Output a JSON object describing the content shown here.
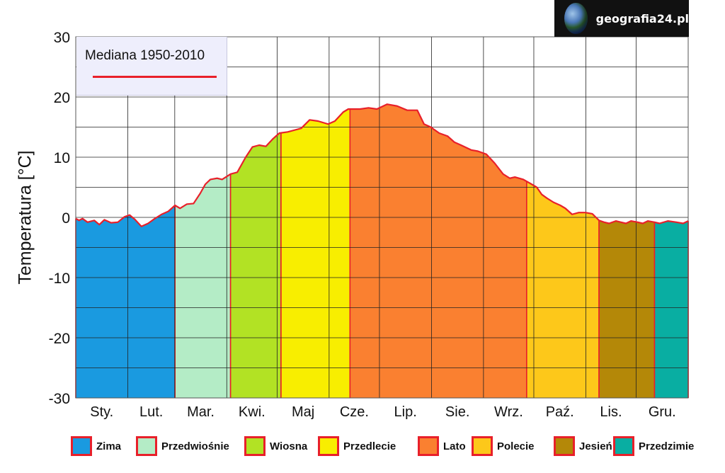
{
  "brand": {
    "text": "geografia24.pl",
    "icon": "globe-icon"
  },
  "chart_data": {
    "type": "area",
    "ylabel": "Temperatura [°C]",
    "ylim": [
      -30,
      30
    ],
    "yticks": [
      30,
      20,
      10,
      0,
      -10,
      -20,
      -30
    ],
    "months": [
      "Sty.",
      "Lut.",
      "Mar.",
      "Kwi.",
      "Maj",
      "Cze.",
      "Lip.",
      "Sie.",
      "Wrz.",
      "Paź.",
      "Lis.",
      "Gru."
    ],
    "line_legend": "Mediana 1950-2010",
    "line_color": "#e8202a",
    "grid": true,
    "median_curve": {
      "day": [
        1,
        3,
        5,
        8,
        12,
        15,
        18,
        22,
        26,
        30,
        33,
        36,
        40,
        44,
        48,
        52,
        56,
        60,
        63,
        67,
        71,
        75,
        78,
        81,
        85,
        88,
        93,
        97,
        102,
        106,
        110,
        114,
        118,
        122,
        127,
        131,
        135,
        140,
        145,
        151,
        155,
        160,
        163,
        166,
        170,
        175,
        180,
        186,
        192,
        198,
        204,
        208,
        212,
        217,
        222,
        226,
        230,
        236,
        240,
        245,
        250,
        255,
        259,
        262,
        267,
        272,
        275,
        278,
        281,
        285,
        289,
        292,
        296,
        300,
        304,
        308,
        312,
        315,
        318,
        322,
        325,
        328,
        331,
        335,
        338,
        341,
        345,
        348,
        353,
        358,
        362,
        365
      ],
      "temp": [
        0,
        -0.5,
        -0.2,
        -0.8,
        -0.5,
        -1.2,
        -0.4,
        -0.9,
        -0.8,
        0.1,
        0.4,
        -0.3,
        -1.5,
        -1.0,
        -0.2,
        0.5,
        1.0,
        2.0,
        1.5,
        2.2,
        2.3,
        4.0,
        5.5,
        6.3,
        6.5,
        6.3,
        7.2,
        7.5,
        10.0,
        11.7,
        12.0,
        11.8,
        13.0,
        14.0,
        14.2,
        14.5,
        14.8,
        16.2,
        16.0,
        15.5,
        16.0,
        17.5,
        18.0,
        18.0,
        18.0,
        18.2,
        18.0,
        18.8,
        18.5,
        17.8,
        17.8,
        15.5,
        15.0,
        14.0,
        13.5,
        12.5,
        12.0,
        11.2,
        11.0,
        10.5,
        9.0,
        7.2,
        6.5,
        6.7,
        6.3,
        5.5,
        5.0,
        3.8,
        3.2,
        2.5,
        2.0,
        1.5,
        0.5,
        0.8,
        0.8,
        0.6,
        -0.5,
        -0.8,
        -1.0,
        -0.6,
        -0.8,
        -1.0,
        -0.6,
        -0.8,
        -1.0,
        -0.6,
        -0.8,
        -1.0,
        -0.6,
        -0.8,
        -1.0,
        -0.6
      ],
      "start_temp": -0.2
    },
    "seasons": [
      {
        "name": "Zima",
        "color": "#1a9ae0",
        "ranges": [
          [
            1,
            60
          ],
          [
            344,
            365
          ]
        ]
      },
      {
        "name": "Przedwiośnie",
        "color": "#b4ecc6",
        "ranges": [
          [
            60,
            93
          ]
        ]
      },
      {
        "name": "Wiosna",
        "color": "#b2e224",
        "ranges": [
          [
            93,
            123
          ]
        ]
      },
      {
        "name": "Przedlecie",
        "color": "#f8ee00",
        "ranges": [
          [
            123,
            164
          ]
        ]
      },
      {
        "name": "Lato",
        "color": "#fa8030",
        "ranges": [
          [
            164,
            269
          ]
        ]
      },
      {
        "name": "Polecie",
        "color": "#fdc81a",
        "ranges": [
          [
            269,
            312
          ]
        ]
      },
      {
        "name": "Jesień",
        "color": "#b48808",
        "ranges": [
          [
            312,
            345
          ]
        ]
      },
      {
        "name": "Przedzimie",
        "color": "#09aea2",
        "ranges": [
          [
            345,
            365
          ]
        ]
      }
    ]
  }
}
